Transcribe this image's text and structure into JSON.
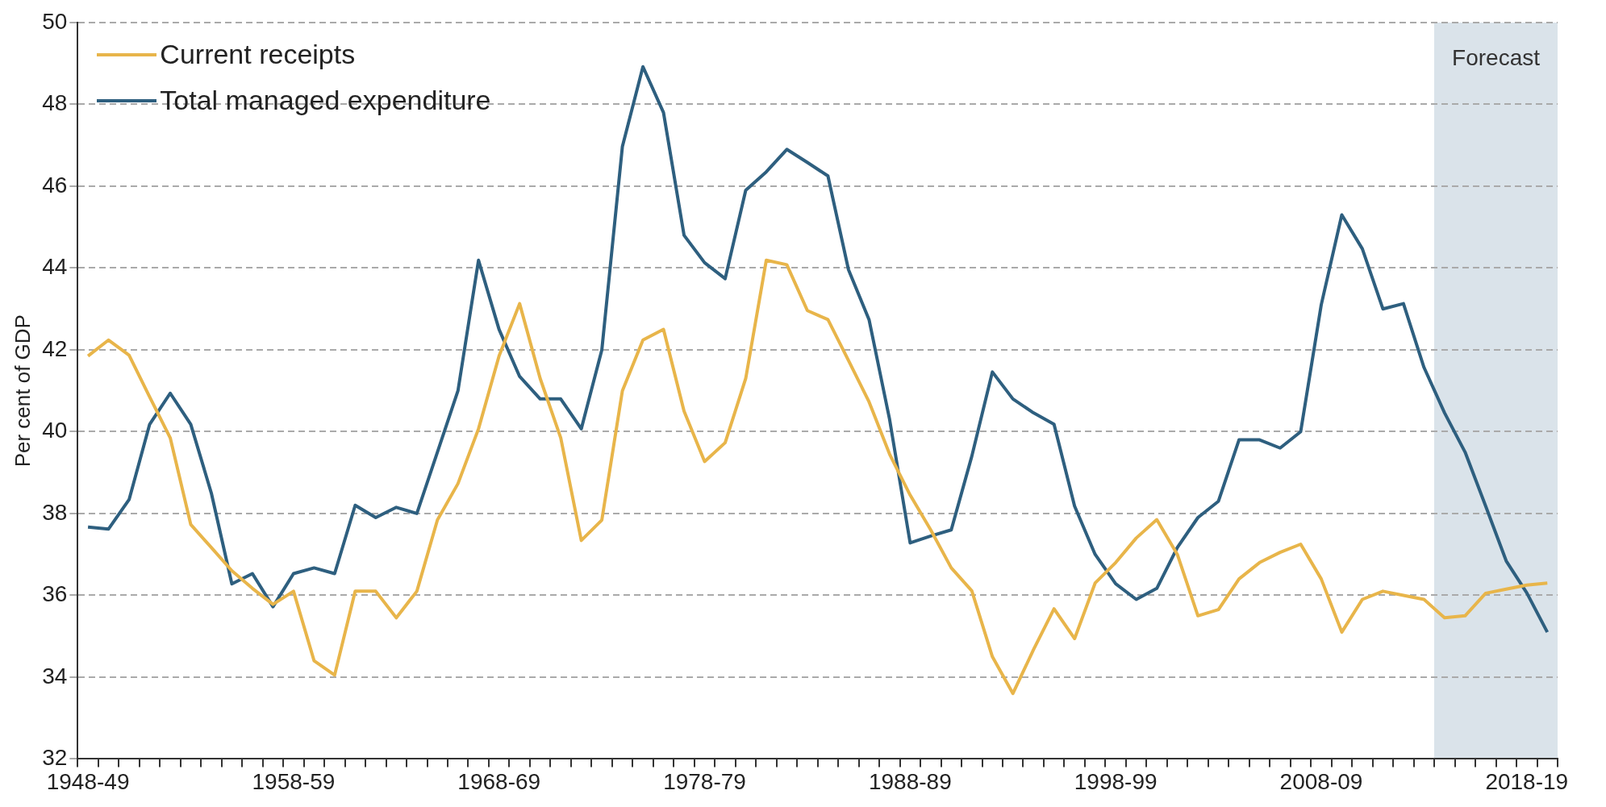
{
  "chart_data": {
    "type": "line",
    "ylabel": "Per cent of GDP",
    "legend": "top left",
    "grid": "y",
    "marker": "none",
    "line_style": "solid",
    "categories": [
      "1948-49",
      null,
      null,
      null,
      null,
      null,
      null,
      null,
      null,
      null,
      "1958-59",
      null,
      null,
      null,
      null,
      null,
      null,
      null,
      null,
      null,
      "1968-69",
      null,
      null,
      null,
      null,
      null,
      null,
      null,
      null,
      null,
      "1978-79",
      null,
      null,
      null,
      null,
      null,
      null,
      null,
      null,
      null,
      "1988-89",
      null,
      null,
      null,
      null,
      null,
      null,
      null,
      null,
      null,
      "1998-99",
      null,
      null,
      null,
      null,
      null,
      null,
      null,
      null,
      null,
      "2008-09",
      null,
      null,
      null,
      null,
      null,
      null,
      null,
      null,
      null,
      "2018-19",
      null
    ],
    "ylim": [
      32,
      50
    ],
    "yticks": [
      32,
      34,
      36,
      38,
      40,
      42,
      44,
      46,
      48,
      50
    ],
    "annotations": [
      "Forecast"
    ],
    "series": [
      {
        "name": "Current receipts",
        "color": "#e8b54a",
        "values": [
          41.85,
          42.24,
          41.87,
          40.85,
          39.85,
          37.73,
          37.17,
          36.6,
          36.17,
          35.78,
          36.1,
          34.4,
          34.05,
          36.1,
          36.1,
          35.45,
          36.1,
          37.84,
          38.73,
          40.07,
          41.85,
          43.13,
          41.3,
          39.85,
          37.34,
          37.84,
          41.0,
          42.24,
          42.5,
          40.5,
          39.27,
          39.73,
          41.3,
          44.19,
          44.08,
          42.96,
          42.74,
          41.74,
          40.73,
          39.45,
          38.45,
          37.6,
          36.67,
          36.11,
          34.5,
          33.6,
          34.67,
          35.67,
          34.94,
          36.3,
          36.8,
          37.4,
          37.85,
          37.0,
          35.5,
          35.65,
          36.4,
          36.8,
          37.05,
          37.25,
          36.4,
          35.1,
          35.9,
          36.1,
          36.0,
          35.9,
          35.45,
          35.5,
          36.05,
          36.15,
          36.25,
          36.3
        ]
      },
      {
        "name": "Total managed expenditure",
        "color": "#2e5f7f",
        "values": [
          37.67,
          37.62,
          38.34,
          40.18,
          40.94,
          40.18,
          38.5,
          36.28,
          36.53,
          35.72,
          36.53,
          36.67,
          36.53,
          38.2,
          37.9,
          38.15,
          38.0,
          39.5,
          41.0,
          44.19,
          42.5,
          41.35,
          40.8,
          40.8,
          40.07,
          42.0,
          46.97,
          48.92,
          47.8,
          44.8,
          44.13,
          43.74,
          45.9,
          46.35,
          46.9,
          46.58,
          46.25,
          43.96,
          42.74,
          40.3,
          37.28,
          37.45,
          37.6,
          39.4,
          41.46,
          40.8,
          40.46,
          40.18,
          38.18,
          37.0,
          36.28,
          35.9,
          36.17,
          37.17,
          37.9,
          38.3,
          39.8,
          39.8,
          39.6,
          40.0,
          43.1,
          45.3,
          44.47,
          43.0,
          43.13,
          41.57,
          40.46,
          39.5,
          38.18,
          36.84,
          36.06,
          35.1
        ]
      }
    ]
  }
}
